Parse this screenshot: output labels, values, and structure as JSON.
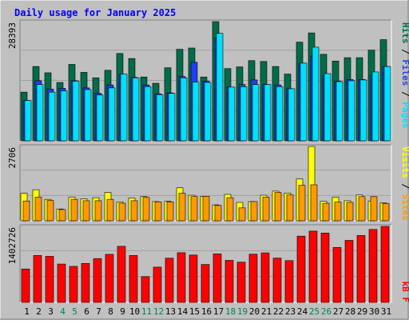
{
  "chart_data": {
    "type": "bar",
    "title": "Daily usage for January 2025",
    "categories": [
      "1",
      "2",
      "3",
      "4",
      "5",
      "6",
      "7",
      "8",
      "9",
      "10",
      "11",
      "12",
      "13",
      "14",
      "15",
      "16",
      "17",
      "18",
      "19",
      "20",
      "21",
      "22",
      "23",
      "24",
      "25",
      "26",
      "27",
      "28",
      "29",
      "30",
      "31"
    ],
    "weekend_days": [
      "4",
      "5",
      "11",
      "12",
      "18",
      "19",
      "25",
      "26"
    ],
    "panels": [
      {
        "id": "hits-files-pages",
        "max_label": "28393",
        "ylim": [
          0,
          28393
        ],
        "axis_labels": [
          "Pages",
          "Files",
          "Hits"
        ],
        "series": [
          {
            "name": "Hits",
            "color": "#006c4a",
            "values": [
              11600,
              17700,
              16200,
              13900,
              18200,
              16300,
              15000,
              16800,
              20800,
              19600,
              15200,
              13700,
              17400,
              21800,
              22100,
              15200,
              28393,
              17200,
              17600,
              19100,
              18900,
              17700,
              15900,
              23500,
              25700,
              20600,
              19000,
              19800,
              19800,
              21600,
              24100
            ]
          },
          {
            "name": "Files",
            "color": "#1f3ff0",
            "values": [
              9600,
              14300,
              12300,
              12500,
              14300,
              12600,
              11300,
              13300,
              15800,
              15100,
              13300,
              11200,
              11400,
              15300,
              18700,
              14200,
              24500,
              12800,
              13400,
              14500,
              13400,
              13300,
              12400,
              18500,
              20200,
              15600,
              14200,
              14600,
              14600,
              15600,
              17700
            ]
          },
          {
            "name": "Pages",
            "color": "#00e0ff",
            "values": [
              9600,
              13400,
              11600,
              11900,
              14200,
              12200,
              10900,
              12600,
              15900,
              15000,
              12900,
              11000,
              11300,
              15000,
              14000,
              13900,
              25600,
              12800,
              12900,
              13400,
              13400,
              12900,
              12400,
              18500,
              22300,
              16000,
              14100,
              14300,
              14500,
              16400,
              17700
            ]
          }
        ]
      },
      {
        "id": "visits-sites",
        "max_label": "2706",
        "ylim": [
          0,
          2706
        ],
        "axis_labels": [
          "Sites",
          "Visits"
        ],
        "series": [
          {
            "name": "Visits",
            "color": "#ffff00",
            "values": [
              1000,
              1130,
              780,
              430,
              860,
              800,
              840,
              1030,
              690,
              830,
              880,
              700,
              710,
              1200,
              930,
              890,
              580,
              960,
              670,
              700,
              930,
              1080,
              1010,
              1520,
              2706,
              710,
              860,
              730,
              940,
              720,
              650
            ]
          },
          {
            "name": "Sites",
            "color": "#ff9900",
            "values": [
              720,
              860,
              740,
              410,
              780,
              730,
              730,
              780,
              640,
              730,
              850,
              690,
              690,
              1000,
              880,
              890,
              560,
              840,
              470,
              700,
              860,
              1030,
              940,
              1290,
              1310,
              640,
              680,
              670,
              880,
              880,
              630
            ]
          }
        ]
      },
      {
        "id": "kbytes",
        "max_label": "1402726",
        "ylim": [
          0,
          1402726
        ],
        "axis_labels": [
          "KBytes"
        ],
        "axis_text": "kB F",
        "series": [
          {
            "name": "KBytes",
            "color": "#ff0000",
            "values": [
              617000,
              866000,
              850000,
              708000,
              665000,
              719000,
              809000,
              887000,
              1035000,
              866000,
              475000,
              651000,
              816000,
              917000,
              874000,
              700000,
              895000,
              776000,
              743000,
              890000,
              914000,
              818000,
              771000,
              1223000,
              1316000,
              1280000,
              1015000,
              1145000,
              1236000,
              1346000,
              1402726
            ]
          }
        ]
      }
    ]
  },
  "colors": {
    "background": "#c0c0c0",
    "panel": "#c0c0c0",
    "title_text": "#0000ff",
    "weekday_label": "#000000",
    "weekend_label": "#00805c",
    "grid": "#a0a0a0"
  }
}
